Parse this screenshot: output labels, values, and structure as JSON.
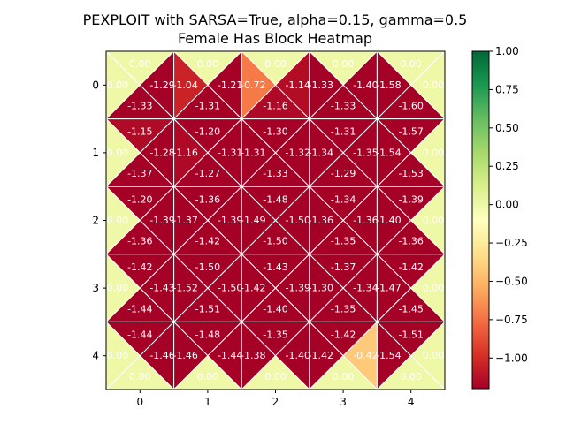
{
  "chart_data": {
    "type": "heatmap",
    "title_line1": "PEXPLOIT with SARSA=True, alpha=0.15, gamma=0.5",
    "title_line2": "Female Has Block Heatmap",
    "x_ticks": [
      "0",
      "1",
      "2",
      "3",
      "4"
    ],
    "y_ticks": [
      "0",
      "1",
      "2",
      "3",
      "4"
    ],
    "colorbar": {
      "min": -1.2,
      "max": 1.0,
      "ticks": [
        1.0,
        0.75,
        0.5,
        0.25,
        0.0,
        -0.25,
        -0.5,
        -0.75,
        -1.0
      ],
      "tick_labels": [
        "1.00",
        "0.75",
        "0.50",
        "0.25",
        "0.00",
        "−0.25",
        "−0.50",
        "−0.75",
        "−1.00"
      ],
      "colormap": "RdYlGn",
      "stops": [
        "#a50026",
        "#d73027",
        "#f46d43",
        "#fdae61",
        "#fee08b",
        "#ffffbf",
        "#d9ef8b",
        "#a6d96a",
        "#66bd63",
        "#1a9850",
        "#006837"
      ]
    },
    "cell_order": [
      "up",
      "left",
      "right",
      "down"
    ],
    "values": [
      [
        [
          0.0,
          0.0,
          -1.29,
          -1.33
        ],
        [
          0.0,
          -1.04,
          -1.21,
          -1.31
        ],
        [
          0.0,
          -0.72,
          -1.14,
          -1.16
        ],
        [
          0.0,
          -1.33,
          -1.4,
          -1.33
        ],
        [
          0.0,
          -1.58,
          0.0,
          -1.6
        ]
      ],
      [
        [
          -1.15,
          0.0,
          -1.28,
          -1.37
        ],
        [
          -1.2,
          -1.16,
          -1.31,
          -1.27
        ],
        [
          -1.3,
          -1.31,
          -1.32,
          -1.33
        ],
        [
          -1.31,
          -1.34,
          -1.35,
          -1.29
        ],
        [
          -1.57,
          -1.54,
          0.0,
          -1.53
        ]
      ],
      [
        [
          -1.2,
          0.0,
          -1.39,
          -1.36
        ],
        [
          -1.36,
          -1.37,
          -1.39,
          -1.42
        ],
        [
          -1.48,
          -1.49,
          -1.5,
          -1.5
        ],
        [
          -1.34,
          -1.36,
          -1.36,
          -1.35
        ],
        [
          -1.39,
          -1.4,
          0.0,
          -1.36
        ]
      ],
      [
        [
          -1.42,
          0.0,
          -1.43,
          -1.44
        ],
        [
          -1.5,
          -1.52,
          -1.5,
          -1.51
        ],
        [
          -1.43,
          -1.42,
          -1.39,
          -1.4
        ],
        [
          -1.37,
          -1.3,
          -1.34,
          -1.35
        ],
        [
          -1.42,
          -1.47,
          0.0,
          -1.45
        ]
      ],
      [
        [
          -1.44,
          0.0,
          -1.46,
          0.0
        ],
        [
          -1.48,
          -1.46,
          -1.44,
          0.0
        ],
        [
          -1.35,
          -1.38,
          -1.4,
          0.0
        ],
        [
          -1.42,
          -1.42,
          -0.42,
          0.0
        ],
        [
          -1.51,
          -1.54,
          0.0,
          0.0
        ]
      ]
    ],
    "labels": [
      [
        [
          "0.00",
          "0.00",
          "-1.29",
          "-1.33"
        ],
        [
          "0.00",
          "-1.04",
          "-1.21",
          "-1.31"
        ],
        [
          "0.00",
          "-0.72",
          "-1.14",
          "-1.16"
        ],
        [
          "0.00",
          "-1.33",
          "-1.40",
          "-1.33"
        ],
        [
          "0.00",
          "-1.58",
          "0.00",
          "-1.60"
        ]
      ],
      [
        [
          "-1.15",
          "0.00",
          "-1.28",
          "-1.37"
        ],
        [
          "-1.20",
          "-1.16",
          "-1.31",
          "-1.27"
        ],
        [
          "-1.30",
          "-1.31",
          "-1.32",
          "-1.33"
        ],
        [
          "-1.31",
          "-1.34",
          "-1.35",
          "-1.29"
        ],
        [
          "-1.57",
          "-1.54",
          "0.00",
          "-1.53"
        ]
      ],
      [
        [
          "-1.20",
          "0.00",
          "-1.39",
          "-1.36"
        ],
        [
          "-1.36",
          "-1.37",
          "-1.39",
          "-1.42"
        ],
        [
          "-1.48",
          "-1.49",
          "-1.50",
          "-1.50"
        ],
        [
          "-1.34",
          "-1.36",
          "-1.36",
          "-1.35"
        ],
        [
          "-1.39",
          "-1.40",
          "0.00",
          "-1.36"
        ]
      ],
      [
        [
          "-1.42",
          "0.00",
          "-1.43",
          "-1.44"
        ],
        [
          "-1.50",
          "-1.52",
          "-1.50",
          "-1.51"
        ],
        [
          "-1.43",
          "-1.42",
          "-1.39",
          "-1.40"
        ],
        [
          "-1.37",
          "-1.30",
          "-1.34",
          "-1.35"
        ],
        [
          "-1.42",
          "-1.47",
          "0.00",
          "-1.45"
        ]
      ],
      [
        [
          "-1.44",
          "0.00",
          "-1.46",
          "0.00"
        ],
        [
          "-1.48",
          "-1.46",
          "-1.44",
          "0.00"
        ],
        [
          "-1.35",
          "-1.38",
          "-1.40",
          "0.00"
        ],
        [
          "-1.42",
          "-1.42",
          "-0.42",
          "0.00"
        ],
        [
          "-1.51",
          "-1.54",
          "0.00",
          "0.00"
        ]
      ]
    ]
  }
}
